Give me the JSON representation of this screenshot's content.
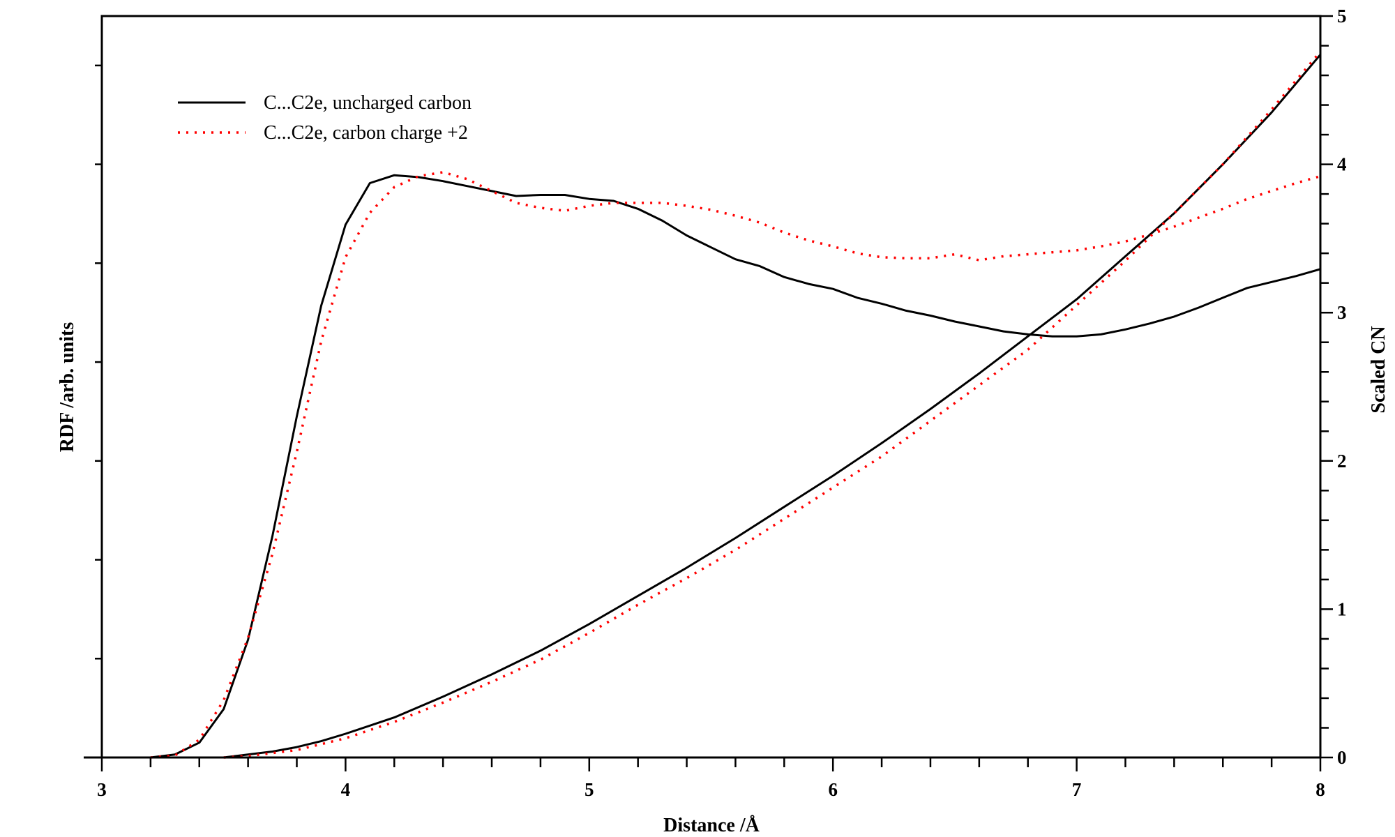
{
  "chart_data": {
    "type": "line",
    "title": "",
    "xlabel": "Distance /Å",
    "ylabel": "RDF /arb. units",
    "y2label": "Scaled CN",
    "xlim": [
      3,
      8
    ],
    "ylim": [
      0,
      7.5
    ],
    "y2lim": [
      0,
      5
    ],
    "xticks": [
      "3",
      "4",
      "5",
      "6",
      "7",
      "8"
    ],
    "y2ticks": [
      "0",
      "1",
      "2",
      "3",
      "4",
      "5"
    ],
    "legend_position": "top-left",
    "legend": [
      "C...C2e, uncharged carbon",
      "C...C2e, carbon charge +2"
    ],
    "colors": {
      "uncharged": "#000000",
      "charged": "#ff0000"
    },
    "series": [
      {
        "name": "C...C2e, uncharged carbon",
        "kind": "rdf",
        "axis": "left",
        "style": "solid",
        "x": [
          3.2,
          3.3,
          3.4,
          3.5,
          3.6,
          3.7,
          3.8,
          3.9,
          4.0,
          4.1,
          4.2,
          4.3,
          4.4,
          4.5,
          4.6,
          4.7,
          4.8,
          4.9,
          5.0,
          5.1,
          5.2,
          5.3,
          5.4,
          5.5,
          5.6,
          5.7,
          5.8,
          5.9,
          6.0,
          6.1,
          6.2,
          6.3,
          6.4,
          6.5,
          6.6,
          6.7,
          6.8,
          6.9,
          7.0,
          7.1,
          7.2,
          7.3,
          7.4,
          7.5,
          7.6,
          7.7,
          7.8,
          7.9,
          8.0
        ],
        "y": [
          0,
          0.03,
          0.15,
          0.49,
          1.19,
          2.24,
          3.45,
          4.57,
          5.39,
          5.81,
          5.89,
          5.87,
          5.83,
          5.78,
          5.73,
          5.68,
          5.69,
          5.69,
          5.65,
          5.63,
          5.55,
          5.43,
          5.28,
          5.16,
          5.04,
          4.97,
          4.86,
          4.79,
          4.74,
          4.65,
          4.59,
          4.52,
          4.47,
          4.41,
          4.36,
          4.31,
          4.28,
          4.26,
          4.26,
          4.28,
          4.33,
          4.39,
          4.46,
          4.55,
          4.65,
          4.75,
          4.81,
          4.87,
          4.94
        ]
      },
      {
        "name": "C...C2e, carbon charge +2",
        "kind": "rdf",
        "axis": "left",
        "style": "dotted",
        "x": [
          3.2,
          3.3,
          3.4,
          3.5,
          3.6,
          3.7,
          3.8,
          3.9,
          4.0,
          4.1,
          4.2,
          4.3,
          4.4,
          4.5,
          4.6,
          4.7,
          4.8,
          4.9,
          5.0,
          5.1,
          5.2,
          5.3,
          5.4,
          5.5,
          5.6,
          5.7,
          5.8,
          5.9,
          6.0,
          6.1,
          6.2,
          6.3,
          6.4,
          6.5,
          6.6,
          6.7,
          6.8,
          6.9,
          7.0,
          7.1,
          7.2,
          7.3,
          7.4,
          7.5,
          7.6,
          7.7,
          7.8,
          7.9,
          8.0
        ],
        "y": [
          0,
          0.02,
          0.18,
          0.58,
          1.21,
          2.06,
          3.09,
          4.21,
          5.06,
          5.51,
          5.77,
          5.88,
          5.92,
          5.85,
          5.73,
          5.61,
          5.56,
          5.53,
          5.58,
          5.61,
          5.61,
          5.61,
          5.58,
          5.54,
          5.48,
          5.41,
          5.31,
          5.23,
          5.17,
          5.1,
          5.06,
          5.05,
          5.05,
          5.09,
          5.03,
          5.07,
          5.09,
          5.11,
          5.13,
          5.17,
          5.22,
          5.29,
          5.37,
          5.46,
          5.55,
          5.65,
          5.73,
          5.81,
          5.88
        ]
      },
      {
        "name": "C...C2e, uncharged carbon (CN)",
        "kind": "cn",
        "axis": "right",
        "style": "solid",
        "x": [
          3.5,
          3.6,
          3.7,
          3.8,
          3.9,
          4.0,
          4.2,
          4.4,
          4.6,
          4.8,
          5.0,
          5.2,
          5.4,
          5.6,
          5.8,
          6.0,
          6.2,
          6.4,
          6.6,
          6.8,
          7.0,
          7.2,
          7.4,
          7.6,
          7.8,
          8.0
        ],
        "y": [
          0,
          0.02,
          0.04,
          0.07,
          0.11,
          0.16,
          0.27,
          0.41,
          0.56,
          0.72,
          0.9,
          1.09,
          1.28,
          1.48,
          1.69,
          1.9,
          2.12,
          2.35,
          2.59,
          2.84,
          3.09,
          3.38,
          3.67,
          4.0,
          4.35,
          4.74
        ]
      },
      {
        "name": "C...C2e, carbon charge +2 (CN)",
        "kind": "cn",
        "axis": "right",
        "style": "dotted",
        "x": [
          3.5,
          3.6,
          3.8,
          4.0,
          4.2,
          4.4,
          4.6,
          4.8,
          5.0,
          5.2,
          5.4,
          5.6,
          5.8,
          6.0,
          6.2,
          6.4,
          6.6,
          6.8,
          7.0,
          7.2,
          7.4,
          7.6,
          7.8,
          8.0
        ],
        "y": [
          0,
          0.01,
          0.05,
          0.13,
          0.24,
          0.37,
          0.51,
          0.66,
          0.84,
          1.03,
          1.21,
          1.4,
          1.61,
          1.82,
          2.03,
          2.27,
          2.51,
          2.75,
          3.05,
          3.35,
          3.67,
          4.0,
          4.37,
          4.76
        ]
      }
    ]
  }
}
